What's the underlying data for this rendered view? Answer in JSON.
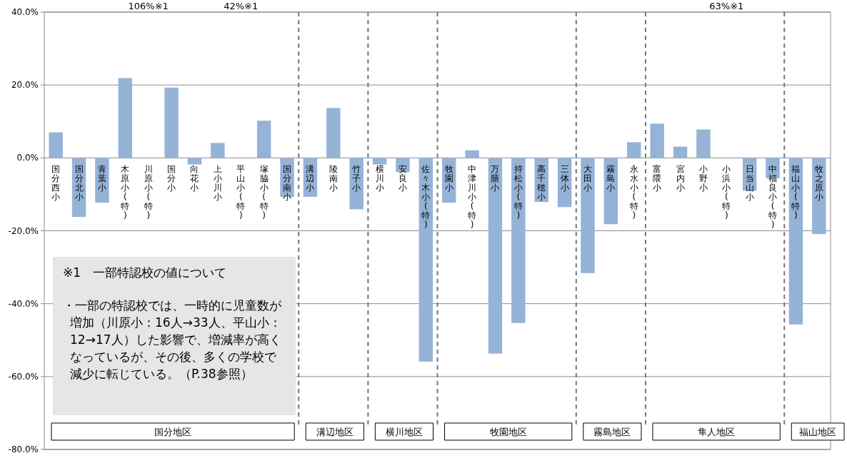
{
  "chart_data": {
    "type": "bar",
    "categories": [
      "国分西小",
      "国分北小",
      "青葉小",
      "木原小(特)",
      "川原小(特)",
      "国分小",
      "向花小",
      "上小川小",
      "平山小(特)",
      "塚脇小(特)",
      "国分南小",
      "溝辺小",
      "陵南小",
      "竹子小",
      "横川小",
      "安良小",
      "佐々木小(特)",
      "牧園小",
      "中津川小(特)",
      "万膳小",
      "持松小(特)",
      "高千穂小",
      "三体小",
      "大田小",
      "霧島小",
      "永水小(特)",
      "富隈小",
      "宮内小",
      "小野小",
      "小浜小(特)",
      "日当山小",
      "中福良小(特)",
      "福山小(特)",
      "牧之原小"
    ],
    "values": [
      7.0,
      -16.2,
      -12.3,
      21.9,
      null,
      19.3,
      -1.8,
      4.1,
      null,
      10.2,
      -10.7,
      -10.7,
      13.7,
      -14.1,
      -1.8,
      -3.9,
      -55.9,
      -12.3,
      2.1,
      -53.7,
      -45.3,
      -12.1,
      -13.5,
      -31.6,
      -18.2,
      4.3,
      9.4,
      3.1,
      7.8,
      null,
      -9.0,
      -5.6,
      -45.7,
      -20.9
    ],
    "value_labels": [
      null,
      null,
      null,
      null,
      "106%※1",
      null,
      null,
      null,
      "42%※1",
      null,
      null,
      null,
      null,
      null,
      null,
      null,
      null,
      null,
      null,
      null,
      null,
      null,
      null,
      null,
      null,
      null,
      null,
      null,
      null,
      "63%※1",
      null,
      null,
      null,
      null
    ],
    "color": "#95b3d7",
    "ylim": [
      -80,
      40
    ],
    "yticks": [
      {
        "value": 40,
        "label": "40.0%"
      },
      {
        "value": 20,
        "label": "20.0%"
      },
      {
        "value": 0,
        "label": "0.0%"
      },
      {
        "value": -20,
        "label": "-20.0%"
      },
      {
        "value": -40,
        "label": "-40.0%"
      },
      {
        "value": -60,
        "label": "-60.0%"
      },
      {
        "value": -80,
        "label": "-80.0%"
      }
    ],
    "grid": "y",
    "annotations": [
      "※1　一部特認校の値について",
      "・一部の特認校では、一時的に児童数が増加（川原小：16人→33人、平山小：12→17人）した影響で、増減率が高くなっているが、その後、多くの学校で減少に転じている。（P.38参照）",
      "国分地区",
      "溝辺地区",
      "横川地区",
      "牧園地区",
      "霧島地区",
      "隼人地区",
      "福山地区"
    ]
  }
}
